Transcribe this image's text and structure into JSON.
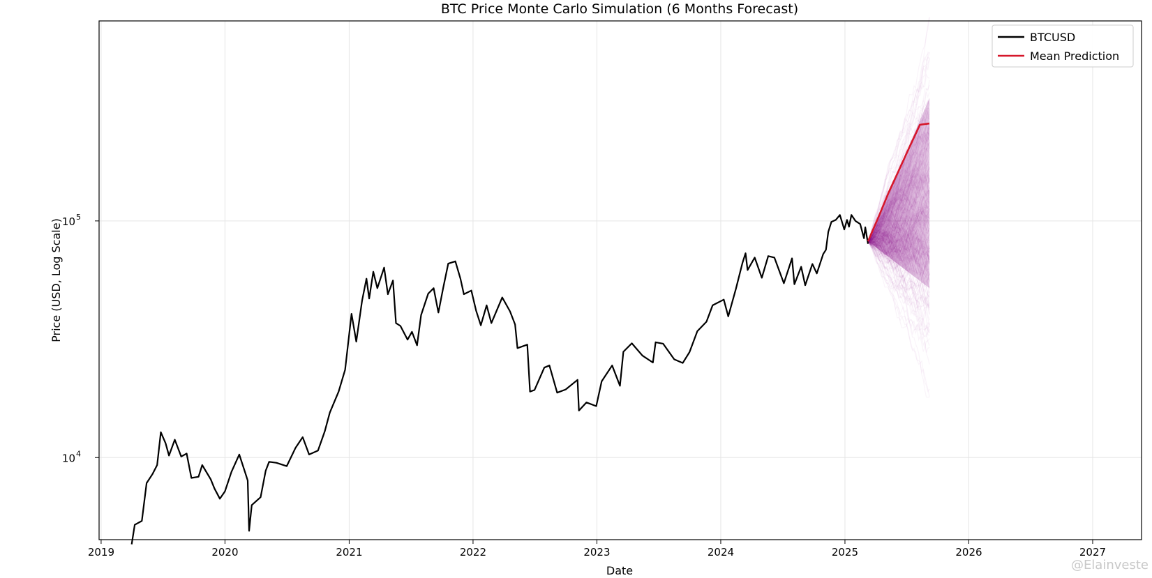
{
  "chart_data": {
    "type": "line",
    "title": "BTC Price Monte Carlo Simulation (6 Months Forecast)",
    "xlabel": "Date",
    "ylabel": "Price (USD, Log Scale)",
    "yscale": "log",
    "xlim": [
      "2018-12-26",
      "2027-05-25"
    ],
    "ylim": [
      4500,
      700000
    ],
    "x_ticks": [
      "2019",
      "2020",
      "2021",
      "2022",
      "2023",
      "2024",
      "2025",
      "2026",
      "2027"
    ],
    "y_ticks": [
      {
        "base": "10",
        "exp": "4",
        "value": 10000
      },
      {
        "base": "10",
        "exp": "5",
        "value": 100000
      }
    ],
    "grid": true,
    "legend_position": "top-right",
    "colors": {
      "history": "#000000",
      "mean": "#d6172b",
      "simulations": "#800080",
      "grid": "#e5e5e5"
    },
    "series": [
      {
        "name": "BTCUSD",
        "points": [
          [
            "2019-04-01",
            4300
          ],
          [
            "2019-04-10",
            5200
          ],
          [
            "2019-05-01",
            5400
          ],
          [
            "2019-05-15",
            7800
          ],
          [
            "2019-06-01",
            8500
          ],
          [
            "2019-06-15",
            9300
          ],
          [
            "2019-06-26",
            12800
          ],
          [
            "2019-07-10",
            11500
          ],
          [
            "2019-07-20",
            10200
          ],
          [
            "2019-08-06",
            11900
          ],
          [
            "2019-08-25",
            10100
          ],
          [
            "2019-09-10",
            10400
          ],
          [
            "2019-09-24",
            8200
          ],
          [
            "2019-10-15",
            8300
          ],
          [
            "2019-10-26",
            9300
          ],
          [
            "2019-11-20",
            8100
          ],
          [
            "2019-12-01",
            7400
          ],
          [
            "2019-12-17",
            6700
          ],
          [
            "2020-01-01",
            7200
          ],
          [
            "2020-01-20",
            8700
          ],
          [
            "2020-02-12",
            10300
          ],
          [
            "2020-03-01",
            8600
          ],
          [
            "2020-03-08",
            8000
          ],
          [
            "2020-03-12",
            4900
          ],
          [
            "2020-03-20",
            6300
          ],
          [
            "2020-04-15",
            6800
          ],
          [
            "2020-04-30",
            8800
          ],
          [
            "2020-05-10",
            9600
          ],
          [
            "2020-06-01",
            9500
          ],
          [
            "2020-07-01",
            9200
          ],
          [
            "2020-07-27",
            11000
          ],
          [
            "2020-08-17",
            12200
          ],
          [
            "2020-09-05",
            10300
          ],
          [
            "2020-10-01",
            10700
          ],
          [
            "2020-10-21",
            12900
          ],
          [
            "2020-11-05",
            15500
          ],
          [
            "2020-12-01",
            19000
          ],
          [
            "2020-12-20",
            23500
          ],
          [
            "2021-01-08",
            40500
          ],
          [
            "2021-01-22",
            30900
          ],
          [
            "2021-02-08",
            46000
          ],
          [
            "2021-02-21",
            57000
          ],
          [
            "2021-03-01",
            47000
          ],
          [
            "2021-03-13",
            61000
          ],
          [
            "2021-03-25",
            52000
          ],
          [
            "2021-04-14",
            63500
          ],
          [
            "2021-04-25",
            49000
          ],
          [
            "2021-05-10",
            56000
          ],
          [
            "2021-05-19",
            37000
          ],
          [
            "2021-06-01",
            36000
          ],
          [
            "2021-06-22",
            31500
          ],
          [
            "2021-07-05",
            34000
          ],
          [
            "2021-07-20",
            29800
          ],
          [
            "2021-08-01",
            40000
          ],
          [
            "2021-08-22",
            49300
          ],
          [
            "2021-09-07",
            52000
          ],
          [
            "2021-09-21",
            41000
          ],
          [
            "2021-10-05",
            52000
          ],
          [
            "2021-10-20",
            66000
          ],
          [
            "2021-11-10",
            67500
          ],
          [
            "2021-11-25",
            57000
          ],
          [
            "2021-12-05",
            49000
          ],
          [
            "2021-12-27",
            50800
          ],
          [
            "2022-01-10",
            41800
          ],
          [
            "2022-01-24",
            36200
          ],
          [
            "2022-02-10",
            44000
          ],
          [
            "2022-02-24",
            37000
          ],
          [
            "2022-03-28",
            47500
          ],
          [
            "2022-04-20",
            41500
          ],
          [
            "2022-05-05",
            36500
          ],
          [
            "2022-05-12",
            29000
          ],
          [
            "2022-06-10",
            30000
          ],
          [
            "2022-06-18",
            19000
          ],
          [
            "2022-07-01",
            19300
          ],
          [
            "2022-07-30",
            24000
          ],
          [
            "2022-08-14",
            24500
          ],
          [
            "2022-09-06",
            18800
          ],
          [
            "2022-10-01",
            19400
          ],
          [
            "2022-11-05",
            21300
          ],
          [
            "2022-11-09",
            15800
          ],
          [
            "2022-12-01",
            17100
          ],
          [
            "2022-12-30",
            16500
          ],
          [
            "2023-01-15",
            21000
          ],
          [
            "2023-02-15",
            24500
          ],
          [
            "2023-03-10",
            20100
          ],
          [
            "2023-03-20",
            28000
          ],
          [
            "2023-04-14",
            30400
          ],
          [
            "2023-05-15",
            27000
          ],
          [
            "2023-06-15",
            25200
          ],
          [
            "2023-06-23",
            30700
          ],
          [
            "2023-07-15",
            30300
          ],
          [
            "2023-08-17",
            26000
          ],
          [
            "2023-09-11",
            25100
          ],
          [
            "2023-10-01",
            27900
          ],
          [
            "2023-10-24",
            34200
          ],
          [
            "2023-11-20",
            37500
          ],
          [
            "2023-12-08",
            44000
          ],
          [
            "2024-01-10",
            46500
          ],
          [
            "2024-01-23",
            39500
          ],
          [
            "2024-02-15",
            51800
          ],
          [
            "2024-03-05",
            66500
          ],
          [
            "2024-03-14",
            73000
          ],
          [
            "2024-03-20",
            62000
          ],
          [
            "2024-04-10",
            70000
          ],
          [
            "2024-05-01",
            57500
          ],
          [
            "2024-05-20",
            71000
          ],
          [
            "2024-06-07",
            70000
          ],
          [
            "2024-07-05",
            54500
          ],
          [
            "2024-07-29",
            69500
          ],
          [
            "2024-08-05",
            54000
          ],
          [
            "2024-08-25",
            64000
          ],
          [
            "2024-09-06",
            53500
          ],
          [
            "2024-09-27",
            65800
          ],
          [
            "2024-10-10",
            60000
          ],
          [
            "2024-10-29",
            72500
          ],
          [
            "2024-11-06",
            75500
          ],
          [
            "2024-11-13",
            90000
          ],
          [
            "2024-11-22",
            99000
          ],
          [
            "2024-12-05",
            101000
          ],
          [
            "2024-12-17",
            106000
          ],
          [
            "2024-12-30",
            92000
          ],
          [
            "2025-01-07",
            101000
          ],
          [
            "2025-01-13",
            94500
          ],
          [
            "2025-01-20",
            106000
          ],
          [
            "2025-02-01",
            100000
          ],
          [
            "2025-02-15",
            97000
          ],
          [
            "2025-02-26",
            84500
          ],
          [
            "2025-03-02",
            94000
          ],
          [
            "2025-03-10",
            80000
          ]
        ]
      },
      {
        "name": "Mean Prediction",
        "points": [
          [
            "2025-03-10",
            82000
          ],
          [
            "2025-04-10",
            104000
          ],
          [
            "2025-05-10",
            132000
          ],
          [
            "2025-06-10",
            165000
          ],
          [
            "2025-07-10",
            205000
          ],
          [
            "2025-08-10",
            255000
          ],
          [
            "2025-09-07",
            258000
          ]
        ]
      }
    ],
    "simulation_band": {
      "start": "2025-03-10",
      "end": "2025-09-07",
      "start_price": 82000,
      "end_low": 18000,
      "end_high": 700000
    }
  },
  "watermark": "@Elainveste"
}
